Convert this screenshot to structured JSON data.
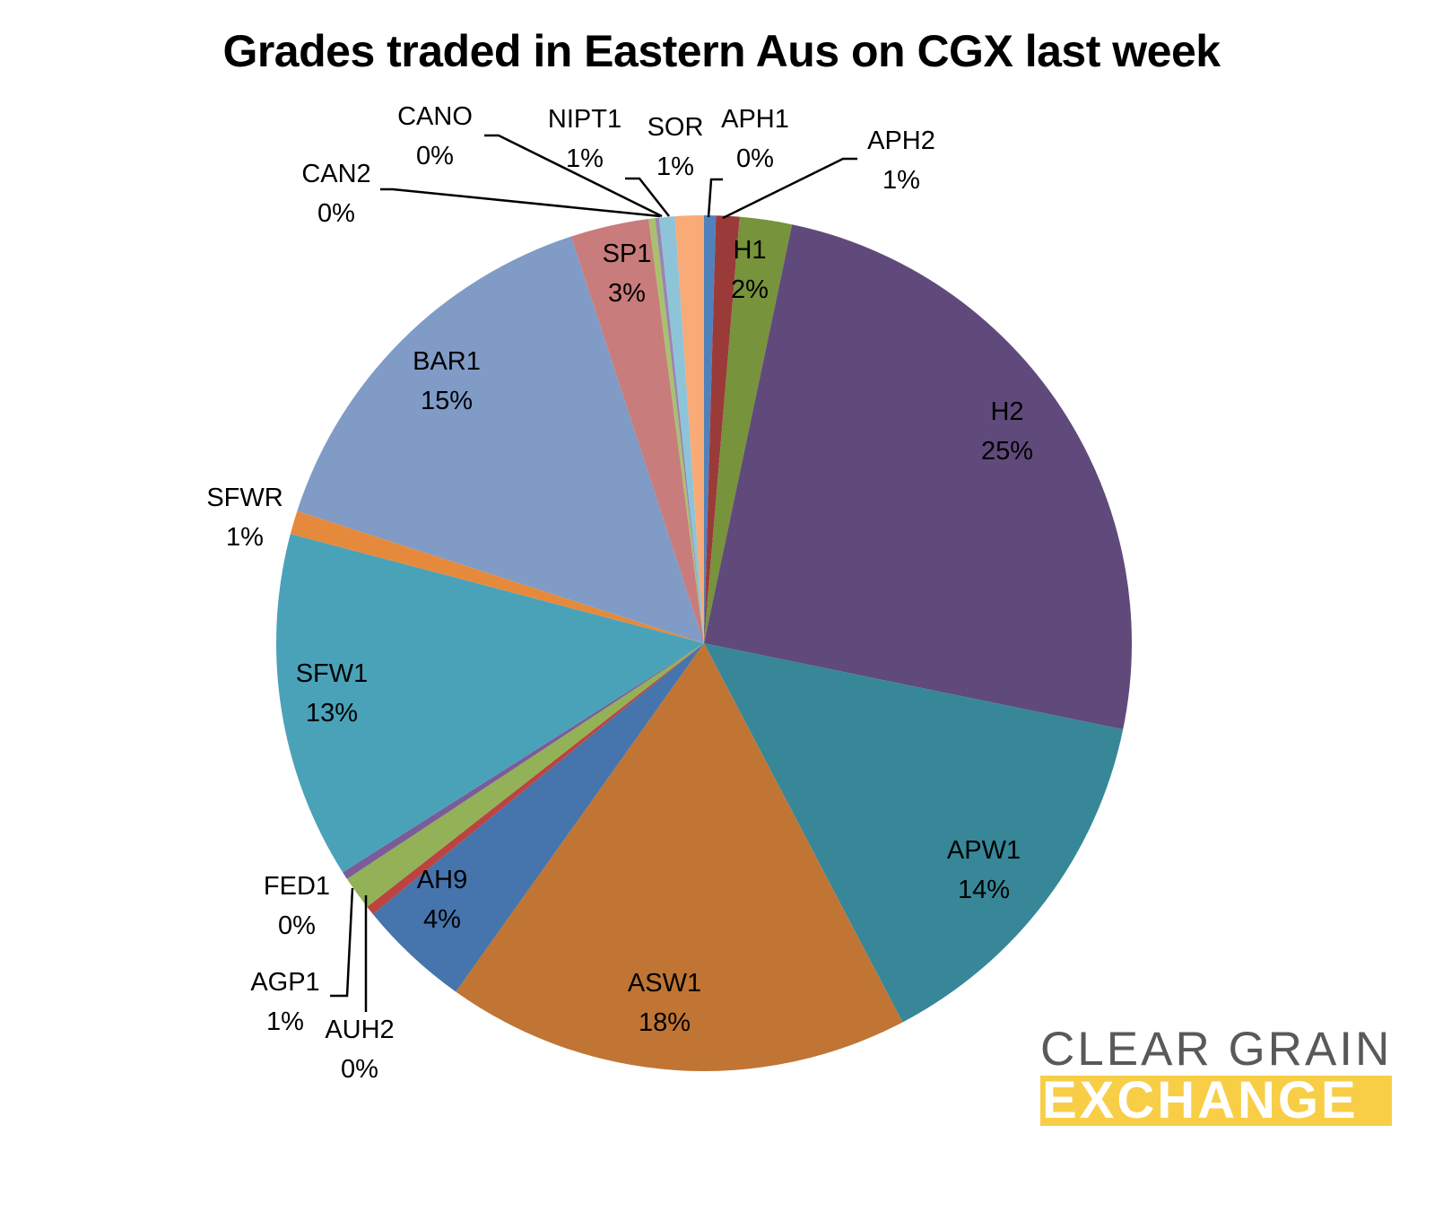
{
  "chart_data": {
    "type": "pie",
    "title": "Grades traded in Eastern Aus on CGX last week",
    "start_angle_deg": 90,
    "direction": "clockwise",
    "slices": [
      {
        "name": "APH1",
        "percent_label": "0%",
        "value": 0.45,
        "color": "#4f81bd"
      },
      {
        "name": "APH2",
        "percent_label": "1%",
        "value": 0.9,
        "color": "#9b3b39"
      },
      {
        "name": "H1",
        "percent_label": "2%",
        "value": 2.0,
        "color": "#77933c"
      },
      {
        "name": "H2",
        "percent_label": "25%",
        "value": 25.3,
        "color": "#604a7b"
      },
      {
        "name": "APW1",
        "percent_label": "14%",
        "value": 14.3,
        "color": "#378798"
      },
      {
        "name": "ASW1",
        "percent_label": "18%",
        "value": 17.8,
        "color": "#c07534"
      },
      {
        "name": "AH9",
        "percent_label": "4%",
        "value": 4.3,
        "color": "#4674ac"
      },
      {
        "name": "AUH2",
        "percent_label": "0%",
        "value": 0.35,
        "color": "#bb4441"
      },
      {
        "name": "AGP1",
        "percent_label": "1%",
        "value": 1.3,
        "color": "#93b156"
      },
      {
        "name": "FED1",
        "percent_label": "0%",
        "value": 0.3,
        "color": "#7a5c9b"
      },
      {
        "name": "SFW1",
        "percent_label": "13%",
        "value": 13.3,
        "color": "#4aa2b9"
      },
      {
        "name": "SFWR",
        "percent_label": "1%",
        "value": 0.9,
        "color": "#e58a3d"
      },
      {
        "name": "BAR1",
        "percent_label": "15%",
        "value": 15.2,
        "color": "#7f9bc6"
      },
      {
        "name": "SP1",
        "percent_label": "3%",
        "value": 3.0,
        "color": "#c87c7b"
      },
      {
        "name": "CAN2",
        "percent_label": "0%",
        "value": 0.25,
        "color": "#a9c16e"
      },
      {
        "name": "CANO",
        "percent_label": "0%",
        "value": 0.15,
        "color": "#9a85b2"
      },
      {
        "name": "NIPT1",
        "percent_label": "1%",
        "value": 0.6,
        "color": "#8ec4d8"
      },
      {
        "name": "SOR",
        "percent_label": "1%",
        "value": 1.1,
        "color": "#f8aa77"
      }
    ]
  },
  "logo": {
    "line1": "CLEAR GRAIN",
    "line2": "EXCHANGE",
    "accent_color": "#f7ce46",
    "text_color": "#595959"
  }
}
